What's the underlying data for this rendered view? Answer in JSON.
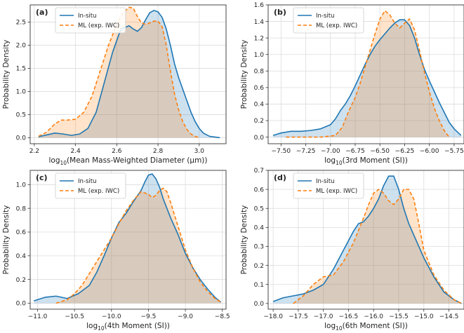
{
  "figure": {
    "colors": {
      "insitu": "#1f77b4",
      "ml": "#ff7f0e"
    }
  },
  "chart_data": [
    {
      "type": "area",
      "panel_label": "(a)",
      "xlabel_prefix": "log",
      "xlabel_sub": "10",
      "xlabel_rest": "(Mean Mass-Weighted Diameter (μm))",
      "ylabel": "Probability Density",
      "xlim": [
        2.18,
        3.13
      ],
      "ylim": [
        -0.13,
        2.87
      ],
      "xticks": [
        2.2,
        2.4,
        2.6,
        2.8,
        3.0
      ],
      "xtick_labels": [
        "2.2",
        "2.4",
        "2.6",
        "2.8",
        "3.0"
      ],
      "yticks": [
        0.0,
        0.5,
        1.0,
        1.5,
        2.0,
        2.5
      ],
      "ytick_labels": [
        "0.0",
        "0.5",
        "1.0",
        "1.5",
        "2.0",
        "2.5"
      ],
      "grid": true,
      "legend": "top-left",
      "series": [
        {
          "name": "In-situ",
          "style": "solid",
          "x": [
            2.22,
            2.26,
            2.3,
            2.34,
            2.38,
            2.42,
            2.46,
            2.5,
            2.54,
            2.58,
            2.62,
            2.66,
            2.68,
            2.7,
            2.72,
            2.74,
            2.76,
            2.78,
            2.8,
            2.82,
            2.84,
            2.86,
            2.88,
            2.9,
            2.92,
            2.94,
            2.96,
            2.98,
            3.0,
            3.02,
            3.05,
            3.1
          ],
          "y": [
            0.02,
            0.06,
            0.1,
            0.08,
            0.05,
            0.08,
            0.2,
            0.55,
            1.2,
            1.85,
            2.35,
            2.42,
            2.35,
            2.3,
            2.38,
            2.55,
            2.7,
            2.75,
            2.72,
            2.6,
            2.35,
            2.0,
            1.6,
            1.3,
            1.05,
            0.8,
            0.55,
            0.35,
            0.2,
            0.1,
            0.03,
            0.0
          ]
        },
        {
          "name": "ML (exp. IWC)",
          "style": "dashed",
          "x": [
            2.22,
            2.26,
            2.3,
            2.33,
            2.36,
            2.4,
            2.44,
            2.48,
            2.52,
            2.56,
            2.6,
            2.63,
            2.66,
            2.68,
            2.7,
            2.72,
            2.74,
            2.76,
            2.78,
            2.8,
            2.82,
            2.84,
            2.86,
            2.88,
            2.9,
            2.92,
            2.94,
            2.96,
            2.98,
            3.0
          ],
          "y": [
            0.03,
            0.12,
            0.3,
            0.38,
            0.38,
            0.4,
            0.55,
            0.9,
            1.45,
            2.0,
            2.45,
            2.7,
            2.82,
            2.8,
            2.62,
            2.48,
            2.45,
            2.48,
            2.52,
            2.52,
            2.4,
            2.0,
            1.45,
            0.95,
            0.6,
            0.35,
            0.18,
            0.08,
            0.03,
            0.0
          ]
        }
      ]
    },
    {
      "type": "area",
      "panel_label": "(b)",
      "xlabel_prefix": "log",
      "xlabel_sub": "10",
      "xlabel_rest": "(3rd Moment (SI))",
      "ylabel": "Probability Density",
      "xlim": [
        -7.63,
        -5.65
      ],
      "ylim": [
        -0.08,
        1.6
      ],
      "xticks": [
        -7.5,
        -7.25,
        -7.0,
        -6.75,
        -6.5,
        -6.25,
        -6.0,
        -5.75
      ],
      "xtick_labels": [
        "−7.50",
        "−7.25",
        "−7.00",
        "−6.75",
        "−6.50",
        "−6.25",
        "−6.00",
        "−5.75"
      ],
      "yticks": [
        0.0,
        0.2,
        0.4,
        0.6,
        0.8,
        1.0,
        1.2,
        1.4,
        1.6
      ],
      "ytick_labels": [
        "0.0",
        "0.2",
        "0.4",
        "0.6",
        "0.8",
        "1.0",
        "1.2",
        "1.4",
        "1.6"
      ],
      "grid": true,
      "legend": "top-left",
      "series": [
        {
          "name": "In-situ",
          "style": "solid",
          "x": [
            -7.58,
            -7.5,
            -7.4,
            -7.3,
            -7.2,
            -7.1,
            -7.0,
            -6.95,
            -6.9,
            -6.85,
            -6.8,
            -6.75,
            -6.7,
            -6.65,
            -6.6,
            -6.55,
            -6.5,
            -6.45,
            -6.4,
            -6.35,
            -6.3,
            -6.25,
            -6.2,
            -6.15,
            -6.1,
            -6.05,
            -6.0,
            -5.95,
            -5.9,
            -5.85,
            -5.8,
            -5.75,
            -5.68
          ],
          "y": [
            0.02,
            0.05,
            0.07,
            0.07,
            0.08,
            0.1,
            0.15,
            0.22,
            0.32,
            0.4,
            0.5,
            0.62,
            0.75,
            0.88,
            1.0,
            1.1,
            1.18,
            1.25,
            1.32,
            1.38,
            1.42,
            1.42,
            1.35,
            1.2,
            1.0,
            0.82,
            0.68,
            0.55,
            0.42,
            0.3,
            0.18,
            0.1,
            0.02
          ]
        },
        {
          "name": "ML (exp. IWC)",
          "style": "dashed",
          "x": [
            -7.45,
            -7.3,
            -7.1,
            -6.95,
            -6.88,
            -6.82,
            -6.75,
            -6.7,
            -6.65,
            -6.6,
            -6.55,
            -6.5,
            -6.45,
            -6.4,
            -6.35,
            -6.3,
            -6.25,
            -6.2,
            -6.15,
            -6.1,
            -6.05,
            -6.0,
            -5.95,
            -5.9,
            -5.85,
            -5.8
          ],
          "y": [
            0.0,
            0.0,
            0.0,
            0.02,
            0.12,
            0.3,
            0.48,
            0.65,
            0.85,
            1.05,
            1.25,
            1.43,
            1.53,
            1.48,
            1.38,
            1.32,
            1.38,
            1.43,
            1.3,
            1.05,
            0.78,
            0.55,
            0.35,
            0.2,
            0.08,
            0.0
          ]
        }
      ]
    },
    {
      "type": "area",
      "panel_label": "(c)",
      "xlabel_prefix": "log",
      "xlabel_sub": "10",
      "xlabel_rest": "(4th Moment (SI))",
      "ylabel": "Probability Density",
      "xlim": [
        -11.1,
        -8.45
      ],
      "ylim": [
        -0.05,
        1.12
      ],
      "xticks": [
        -11.0,
        -10.5,
        -10.0,
        -9.5,
        -9.0,
        -8.5
      ],
      "xtick_labels": [
        "−11.0",
        "−10.5",
        "−10.0",
        "−9.5",
        "−9.0",
        "−8.5"
      ],
      "yticks": [
        0.0,
        0.2,
        0.4,
        0.6,
        0.8,
        1.0
      ],
      "ytick_labels": [
        "0.0",
        "0.2",
        "0.4",
        "0.6",
        "0.8",
        "1.0"
      ],
      "grid": true,
      "legend": "top-left",
      "series": [
        {
          "name": "In-situ",
          "style": "solid",
          "x": [
            -11.05,
            -10.9,
            -10.75,
            -10.6,
            -10.45,
            -10.3,
            -10.2,
            -10.1,
            -10.0,
            -9.9,
            -9.8,
            -9.7,
            -9.6,
            -9.55,
            -9.5,
            -9.45,
            -9.4,
            -9.35,
            -9.3,
            -9.2,
            -9.1,
            -9.0,
            -8.9,
            -8.8,
            -8.7,
            -8.6,
            -8.52
          ],
          "y": [
            0.02,
            0.05,
            0.06,
            0.04,
            0.08,
            0.15,
            0.26,
            0.4,
            0.55,
            0.68,
            0.76,
            0.86,
            0.95,
            1.02,
            1.08,
            1.09,
            1.05,
            0.98,
            0.88,
            0.72,
            0.58,
            0.42,
            0.3,
            0.2,
            0.12,
            0.05,
            0.01
          ]
        },
        {
          "name": "ML (exp. IWC)",
          "style": "dashed",
          "x": [
            -10.75,
            -10.6,
            -10.5,
            -10.4,
            -10.3,
            -10.2,
            -10.1,
            -10.0,
            -9.9,
            -9.8,
            -9.7,
            -9.6,
            -9.5,
            -9.45,
            -9.4,
            -9.35,
            -9.3,
            -9.25,
            -9.2,
            -9.1,
            -9.0,
            -8.9,
            -8.8,
            -8.7,
            -8.6,
            -8.52
          ],
          "y": [
            0.0,
            0.03,
            0.08,
            0.15,
            0.25,
            0.35,
            0.45,
            0.55,
            0.67,
            0.78,
            0.87,
            0.94,
            0.92,
            0.89,
            0.91,
            0.95,
            0.97,
            0.94,
            0.85,
            0.65,
            0.45,
            0.3,
            0.18,
            0.1,
            0.04,
            0.01
          ]
        }
      ]
    },
    {
      "type": "area",
      "panel_label": "(d)",
      "xlabel_prefix": "log",
      "xlabel_sub": "10",
      "xlabel_rest": "(6th Moment (SI))",
      "ylabel": "Probability Density",
      "xlim": [
        -18.1,
        -14.2
      ],
      "ylim": [
        -0.03,
        0.7
      ],
      "xticks": [
        -18.0,
        -17.5,
        -17.0,
        -16.5,
        -16.0,
        -15.5,
        -15.0,
        -14.5
      ],
      "xtick_labels": [
        "−18.0",
        "−17.5",
        "−17.0",
        "−16.5",
        "−16.0",
        "−15.5",
        "−15.0",
        "−14.5"
      ],
      "yticks": [
        0.0,
        0.1,
        0.2,
        0.3,
        0.4,
        0.5,
        0.6,
        0.7
      ],
      "ytick_labels": [
        "0.0",
        "0.1",
        "0.2",
        "0.3",
        "0.4",
        "0.5",
        "0.6",
        "0.7"
      ],
      "grid": true,
      "legend": "top-left",
      "series": [
        {
          "name": "In-situ",
          "style": "solid",
          "x": [
            -18.0,
            -17.8,
            -17.6,
            -17.4,
            -17.2,
            -17.0,
            -16.8,
            -16.6,
            -16.4,
            -16.3,
            -16.2,
            -16.1,
            -16.0,
            -15.9,
            -15.8,
            -15.7,
            -15.6,
            -15.5,
            -15.4,
            -15.3,
            -15.2,
            -15.0,
            -14.8,
            -14.6,
            -14.4,
            -14.25
          ],
          "y": [
            0.01,
            0.03,
            0.04,
            0.05,
            0.07,
            0.1,
            0.18,
            0.28,
            0.38,
            0.42,
            0.43,
            0.46,
            0.5,
            0.55,
            0.62,
            0.67,
            0.67,
            0.6,
            0.5,
            0.42,
            0.36,
            0.24,
            0.14,
            0.06,
            0.02,
            0.0
          ]
        },
        {
          "name": "ML (exp. IWC)",
          "style": "dashed",
          "x": [
            -17.6,
            -17.4,
            -17.2,
            -17.0,
            -16.8,
            -16.6,
            -16.4,
            -16.2,
            -16.1,
            -16.0,
            -15.9,
            -15.8,
            -15.7,
            -15.6,
            -15.5,
            -15.4,
            -15.3,
            -15.2,
            -15.1,
            -15.0,
            -14.8,
            -14.6,
            -14.4,
            -14.25
          ],
          "y": [
            0.0,
            0.04,
            0.1,
            0.14,
            0.15,
            0.22,
            0.32,
            0.45,
            0.52,
            0.58,
            0.6,
            0.58,
            0.54,
            0.52,
            0.55,
            0.6,
            0.6,
            0.55,
            0.42,
            0.28,
            0.15,
            0.07,
            0.02,
            0.0
          ]
        }
      ]
    }
  ]
}
